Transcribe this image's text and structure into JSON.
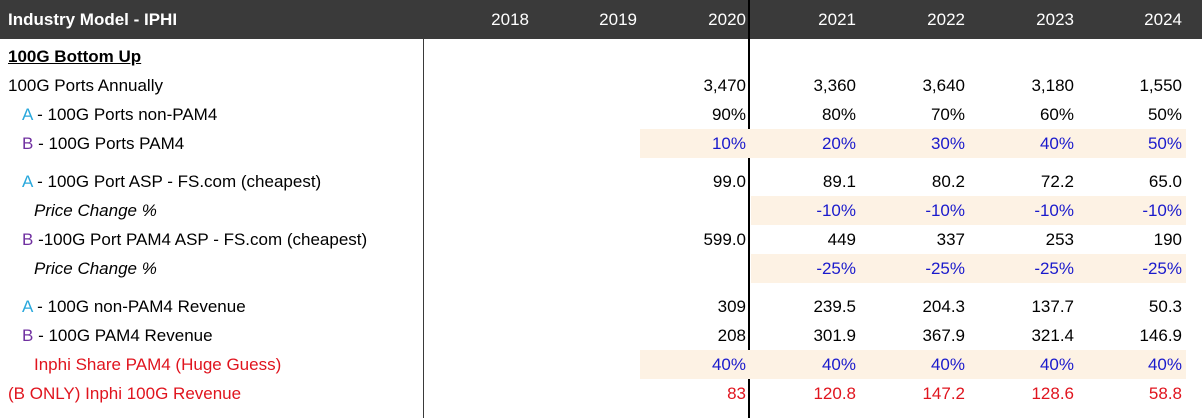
{
  "header": {
    "title": "Industry Model - IPHI",
    "years": [
      "2018",
      "2019",
      "2020",
      "2021",
      "2022",
      "2023",
      "2024"
    ]
  },
  "rows": {
    "section": {
      "label": "100G Bottom Up"
    },
    "ports_annual": {
      "label": "100G Ports Annually",
      "values": [
        "3,470",
        "3,360",
        "3,640",
        "3,180",
        "1,550"
      ]
    },
    "non_pam4": {
      "prefix": "A",
      "label": " - 100G Ports non-PAM4",
      "values": [
        "90%",
        "80%",
        "70%",
        "60%",
        "50%"
      ]
    },
    "pam4": {
      "prefix": "B",
      "label": " - 100G Ports PAM4",
      "values": [
        "10%",
        "20%",
        "30%",
        "40%",
        "50%"
      ]
    },
    "asp_a": {
      "prefix": "A",
      "label": " - 100G Port ASP - FS.com (cheapest)",
      "values": [
        "99.0",
        "89.1",
        "80.2",
        "72.2",
        "65.0"
      ]
    },
    "price_change_a": {
      "label": "Price Change %",
      "values": [
        "-10%",
        "-10%",
        "-10%",
        "-10%"
      ]
    },
    "asp_b": {
      "prefix": "B",
      "label": " -100G Port PAM4 ASP - FS.com (cheapest)",
      "values": [
        "599.0",
        "449",
        "337",
        "253",
        "190"
      ]
    },
    "price_change_b": {
      "label": "Price Change %",
      "values": [
        "-25%",
        "-25%",
        "-25%",
        "-25%"
      ]
    },
    "rev_a": {
      "prefix": "A",
      "label": " - 100G non-PAM4 Revenue",
      "values": [
        "309",
        "239.5",
        "204.3",
        "137.7",
        "50.3"
      ]
    },
    "rev_b": {
      "prefix": "B",
      "label": " - 100G PAM4 Revenue",
      "values": [
        "208",
        "301.9",
        "367.9",
        "321.4",
        "146.9"
      ]
    },
    "share": {
      "label": "Inphi Share PAM4 (Huge Guess)",
      "values": [
        "40%",
        "40%",
        "40%",
        "40%",
        "40%"
      ]
    },
    "inphi_rev": {
      "label": "(B ONLY) Inphi 100G Revenue",
      "values": [
        "83",
        "120.8",
        "147.2",
        "128.6",
        "58.8"
      ]
    }
  },
  "colors": {
    "header_bg": "#3a3a3a",
    "input_shade": "#fdf2e4",
    "blue": "#1a1acc",
    "red": "#e0141e",
    "cyan": "#29a8dc",
    "purple": "#7030a0"
  }
}
